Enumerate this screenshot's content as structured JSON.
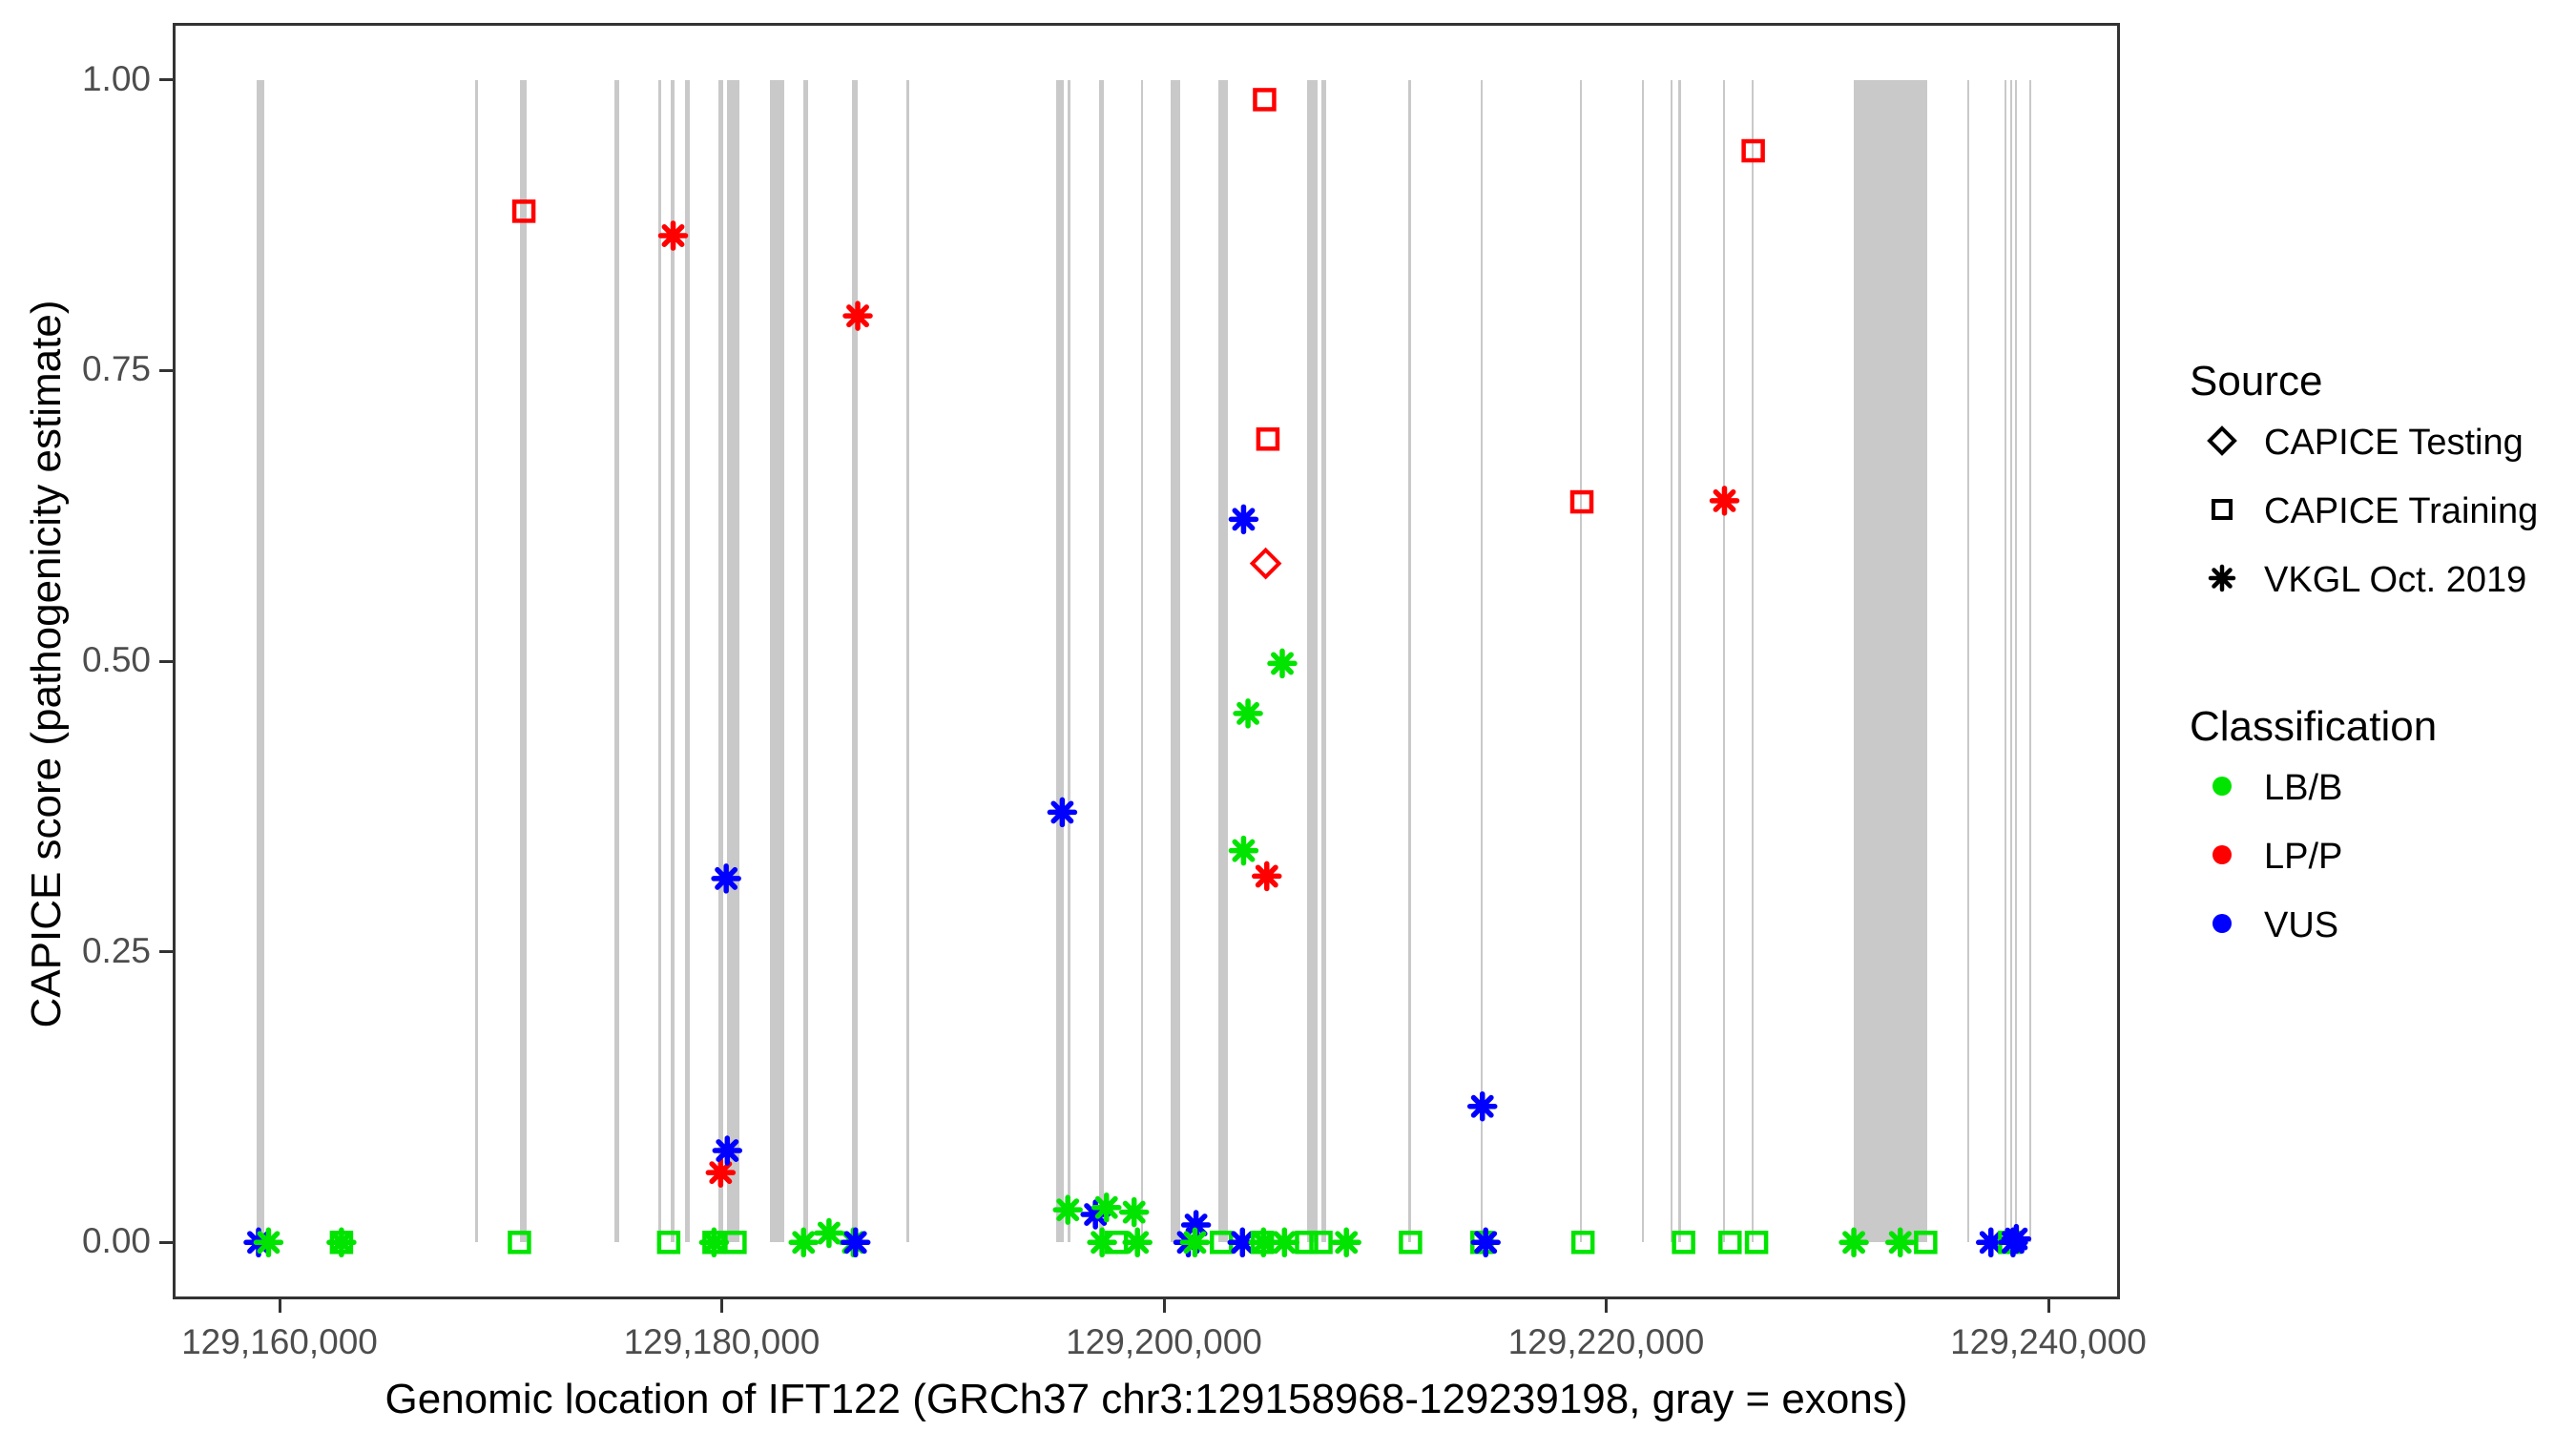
{
  "colors": {
    "LB/B": "#00E400",
    "LP/P": "#FF0000",
    "VUS": "#0000FF",
    "exon": "#C9C9C9",
    "axis_text": "#4D4D4D",
    "panel_border": "#333333",
    "legend_symbol": "#000000"
  },
  "legend": {
    "source": {
      "title": "Source",
      "items": [
        {
          "label": "CAPICE Testing",
          "shape": "diamond"
        },
        {
          "label": "CAPICE Training",
          "shape": "square"
        },
        {
          "label": "VKGL Oct. 2019",
          "shape": "asterisk"
        }
      ]
    },
    "classification": {
      "title": "Classification",
      "items": [
        {
          "label": "LB/B",
          "color": "#00E400"
        },
        {
          "label": "LP/P",
          "color": "#FF0000"
        },
        {
          "label": "VUS",
          "color": "#0000FF"
        }
      ]
    }
  },
  "chart_data": {
    "type": "scatter",
    "title": "",
    "xlabel": "Genomic location of IFT122 (GRCh37 chr3:129158968-129239198, gray = exons)",
    "ylabel": "CAPICE score (pathogenicity estimate)",
    "xlim": [
      129155167,
      129243236
    ],
    "ylim": [
      -0.049,
      1.049
    ],
    "grid": false,
    "legend_position": "right",
    "x_ticks": [
      {
        "value": 129160000,
        "label": "129,160,000"
      },
      {
        "value": 129180000,
        "label": "129,180,000"
      },
      {
        "value": 129200000,
        "label": "129,200,000"
      },
      {
        "value": 129220000,
        "label": "129,220,000"
      },
      {
        "value": 129240000,
        "label": "129,240,000"
      }
    ],
    "y_ticks": [
      {
        "value": 0.0,
        "label": "0.00"
      },
      {
        "value": 0.25,
        "label": "0.25"
      },
      {
        "value": 0.5,
        "label": "0.50"
      },
      {
        "value": 0.75,
        "label": "0.75"
      },
      {
        "value": 1.0,
        "label": "1.00"
      }
    ],
    "exons": [
      [
        129158970,
        129159330
      ],
      [
        129168850,
        129168990
      ],
      [
        129170870,
        129171170
      ],
      [
        129175130,
        129175350
      ],
      [
        129177130,
        129177230
      ],
      [
        129177700,
        129177850
      ],
      [
        129178340,
        129178560
      ],
      [
        129179850,
        129180070
      ],
      [
        129180240,
        129180800
      ],
      [
        129182180,
        129182830
      ],
      [
        129183690,
        129183910
      ],
      [
        129185890,
        129186160
      ],
      [
        129188330,
        129188470
      ],
      [
        129195120,
        129195470
      ],
      [
        129195640,
        129195740
      ],
      [
        129197070,
        129197290
      ],
      [
        129198950,
        129199060
      ],
      [
        129200300,
        129200740
      ],
      [
        129202460,
        129202900
      ],
      [
        129206470,
        129206940
      ],
      [
        129207120,
        129207350
      ],
      [
        129211040,
        129211160
      ],
      [
        129214320,
        129214430
      ],
      [
        129218810,
        129218910
      ],
      [
        129221610,
        129221710
      ],
      [
        129222900,
        129223010
      ],
      [
        129223260,
        129223360
      ],
      [
        129225280,
        129225390
      ],
      [
        129226570,
        129226680
      ],
      [
        129231200,
        129234520
      ],
      [
        129236320,
        129236430
      ],
      [
        129238000,
        129238110
      ],
      [
        129238260,
        129238370
      ],
      [
        129238480,
        129238590
      ],
      [
        129239130,
        129239230
      ]
    ],
    "points": [
      {
        "x": 129159050,
        "y": 0.0,
        "source": "vkgl",
        "classification": "VUS"
      },
      {
        "x": 129159500,
        "y": 0.0,
        "source": "vkgl",
        "classification": "LB/B"
      },
      {
        "x": 129162800,
        "y": 0.0,
        "source": "training",
        "classification": "LB/B"
      },
      {
        "x": 129162800,
        "y": 0.0,
        "source": "vkgl",
        "classification": "LB/B"
      },
      {
        "x": 129170850,
        "y": 0.0,
        "source": "training",
        "classification": "LB/B"
      },
      {
        "x": 129171050,
        "y": 0.887,
        "source": "training",
        "classification": "LP/P"
      },
      {
        "x": 129177600,
        "y": 0.0,
        "source": "training",
        "classification": "LB/B"
      },
      {
        "x": 129177800,
        "y": 0.866,
        "source": "vkgl",
        "classification": "LP/P"
      },
      {
        "x": 129179650,
        "y": 0.0,
        "source": "training",
        "classification": "LB/B"
      },
      {
        "x": 129179650,
        "y": 0.0,
        "source": "vkgl",
        "classification": "LB/B"
      },
      {
        "x": 129179950,
        "y": 0.06,
        "source": "vkgl",
        "classification": "LP/P"
      },
      {
        "x": 129180250,
        "y": 0.079,
        "source": "vkgl",
        "classification": "VUS"
      },
      {
        "x": 129180200,
        "y": 0.313,
        "source": "vkgl",
        "classification": "VUS"
      },
      {
        "x": 129180600,
        "y": 0.0,
        "source": "training",
        "classification": "LB/B"
      },
      {
        "x": 129183700,
        "y": 0.0,
        "source": "vkgl",
        "classification": "LB/B"
      },
      {
        "x": 129184850,
        "y": 0.008,
        "source": "vkgl",
        "classification": "LB/B"
      },
      {
        "x": 129185950,
        "y": 0.0,
        "source": "vkgl",
        "classification": "LB/B"
      },
      {
        "x": 129186050,
        "y": 0.0,
        "source": "vkgl",
        "classification": "VUS"
      },
      {
        "x": 129186150,
        "y": 0.797,
        "source": "vkgl",
        "classification": "LP/P"
      },
      {
        "x": 129195400,
        "y": 0.37,
        "source": "vkgl",
        "classification": "VUS"
      },
      {
        "x": 129195650,
        "y": 0.028,
        "source": "vkgl",
        "classification": "LB/B"
      },
      {
        "x": 129196900,
        "y": 0.024,
        "source": "vkgl",
        "classification": "VUS"
      },
      {
        "x": 129197200,
        "y": 0.0,
        "source": "vkgl",
        "classification": "LB/B"
      },
      {
        "x": 129197400,
        "y": 0.03,
        "source": "vkgl",
        "classification": "LB/B"
      },
      {
        "x": 129197850,
        "y": 0.0,
        "source": "training",
        "classification": "LB/B"
      },
      {
        "x": 129198650,
        "y": 0.026,
        "source": "vkgl",
        "classification": "LB/B"
      },
      {
        "x": 129198800,
        "y": 0.0,
        "source": "vkgl",
        "classification": "LB/B"
      },
      {
        "x": 129201100,
        "y": 0.0,
        "source": "vkgl",
        "classification": "VUS"
      },
      {
        "x": 129201450,
        "y": 0.015,
        "source": "vkgl",
        "classification": "VUS"
      },
      {
        "x": 129201400,
        "y": 0.0,
        "source": "vkgl",
        "classification": "LB/B"
      },
      {
        "x": 129202600,
        "y": 0.0,
        "source": "training",
        "classification": "LB/B"
      },
      {
        "x": 129203550,
        "y": 0.0,
        "source": "vkgl",
        "classification": "VUS"
      },
      {
        "x": 129203600,
        "y": 0.622,
        "source": "vkgl",
        "classification": "VUS"
      },
      {
        "x": 129203600,
        "y": 0.337,
        "source": "vkgl",
        "classification": "LB/B"
      },
      {
        "x": 129203800,
        "y": 0.455,
        "source": "vkgl",
        "classification": "LB/B"
      },
      {
        "x": 129204450,
        "y": 0.0,
        "source": "training",
        "classification": "LB/B"
      },
      {
        "x": 129204500,
        "y": 0.0,
        "source": "vkgl",
        "classification": "LB/B"
      },
      {
        "x": 129204550,
        "y": 0.983,
        "source": "training",
        "classification": "LP/P"
      },
      {
        "x": 129204600,
        "y": 0.584,
        "source": "testing",
        "classification": "LP/P"
      },
      {
        "x": 129204650,
        "y": 0.315,
        "source": "vkgl",
        "classification": "LP/P"
      },
      {
        "x": 129204700,
        "y": 0.691,
        "source": "training",
        "classification": "LP/P"
      },
      {
        "x": 129205350,
        "y": 0.498,
        "source": "vkgl",
        "classification": "LB/B"
      },
      {
        "x": 129205450,
        "y": 0.0,
        "source": "vkgl",
        "classification": "LB/B"
      },
      {
        "x": 129206450,
        "y": 0.0,
        "source": "training",
        "classification": "LB/B"
      },
      {
        "x": 129207100,
        "y": 0.0,
        "source": "training",
        "classification": "LB/B"
      },
      {
        "x": 129208250,
        "y": 0.0,
        "source": "vkgl",
        "classification": "LB/B"
      },
      {
        "x": 129211150,
        "y": 0.0,
        "source": "training",
        "classification": "LB/B"
      },
      {
        "x": 129214380,
        "y": 0.0,
        "source": "training",
        "classification": "LB/B"
      },
      {
        "x": 129214400,
        "y": 0.117,
        "source": "vkgl",
        "classification": "VUS"
      },
      {
        "x": 129214550,
        "y": 0.0,
        "source": "vkgl",
        "classification": "VUS"
      },
      {
        "x": 129218900,
        "y": 0.637,
        "source": "training",
        "classification": "LP/P"
      },
      {
        "x": 129218950,
        "y": 0.0,
        "source": "training",
        "classification": "LB/B"
      },
      {
        "x": 129223500,
        "y": 0.0,
        "source": "training",
        "classification": "LB/B"
      },
      {
        "x": 129225350,
        "y": 0.638,
        "source": "vkgl",
        "classification": "LP/P"
      },
      {
        "x": 129225600,
        "y": 0.0,
        "source": "training",
        "classification": "LB/B"
      },
      {
        "x": 129226650,
        "y": 0.939,
        "source": "training",
        "classification": "LP/P"
      },
      {
        "x": 129226800,
        "y": 0.0,
        "source": "training",
        "classification": "LB/B"
      },
      {
        "x": 129231200,
        "y": 0.0,
        "source": "vkgl",
        "classification": "LB/B"
      },
      {
        "x": 129233300,
        "y": 0.0,
        "source": "vkgl",
        "classification": "LB/B"
      },
      {
        "x": 129234450,
        "y": 0.0,
        "source": "training",
        "classification": "LB/B"
      },
      {
        "x": 129237400,
        "y": 0.0,
        "source": "vkgl",
        "classification": "VUS"
      },
      {
        "x": 129238250,
        "y": 0.0,
        "source": "training",
        "classification": "LB/B"
      },
      {
        "x": 129238400,
        "y": 0.0,
        "source": "vkgl",
        "classification": "VUS"
      },
      {
        "x": 129238550,
        "y": 0.003,
        "source": "vkgl",
        "classification": "VUS"
      }
    ]
  }
}
